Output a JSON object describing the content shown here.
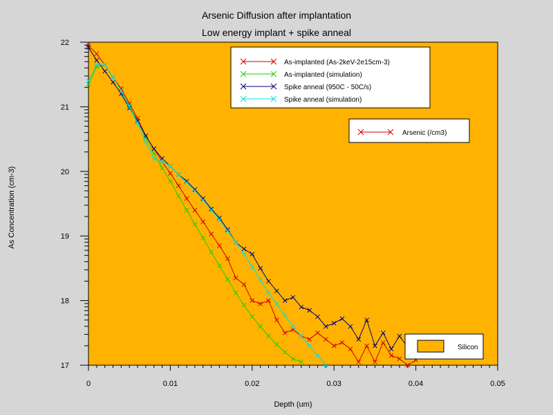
{
  "chart_data": {
    "type": "line",
    "title": "Arsenic Diffusion after implantation",
    "subtitle": "Low energy implant + spike anneal",
    "xlabel": "Depth (um)",
    "ylabel": "As Concentration (cm-3)",
    "xlim": [
      0,
      0.05
    ],
    "ylim": [
      17,
      22
    ],
    "xticks": [
      0,
      0.01,
      0.02,
      0.03,
      0.04,
      0.05
    ],
    "xtick_labels": [
      "0",
      "0.01",
      "0.02",
      "0.03",
      "0.04",
      "0.05"
    ],
    "yticks": [
      17,
      18,
      19,
      20,
      21,
      22
    ],
    "ytick_labels": [
      "17",
      "18",
      "19",
      "20",
      "21",
      "22"
    ],
    "grid": false,
    "background_color": "#ffb300",
    "legend_placement": "top-right",
    "series": [
      {
        "name": "As-implanted (As-2keV-2e15cm-3)",
        "color": "#cc0000",
        "x": [
          0,
          0.001,
          0.002,
          0.003,
          0.004,
          0.005,
          0.006,
          0.007,
          0.008,
          0.009,
          0.01,
          0.011,
          0.012,
          0.013,
          0.014,
          0.015,
          0.016,
          0.017,
          0.018,
          0.019,
          0.02,
          0.021,
          0.022,
          0.023,
          0.024,
          0.025,
          0.026,
          0.027,
          0.028,
          0.029,
          0.03,
          0.031,
          0.032,
          0.033,
          0.034,
          0.035,
          0.036,
          0.037,
          0.038,
          0.039,
          0.04
        ],
        "y": [
          21.95,
          21.82,
          21.65,
          21.45,
          21.28,
          21.05,
          20.82,
          20.55,
          20.35,
          20.15,
          19.97,
          19.78,
          19.58,
          19.4,
          19.22,
          19.03,
          18.85,
          18.65,
          18.35,
          18.25,
          18.0,
          17.95,
          18.0,
          17.7,
          17.5,
          17.55,
          17.45,
          17.4,
          17.5,
          17.4,
          17.3,
          17.35,
          17.25,
          17.05,
          17.3,
          17.05,
          17.35,
          17.15,
          17.1,
          17.0,
          17.08
        ]
      },
      {
        "name": "As-implanted (simulation)",
        "color": "#22cc00",
        "x": [
          0,
          0.001,
          0.002,
          0.003,
          0.004,
          0.005,
          0.006,
          0.007,
          0.008,
          0.009,
          0.01,
          0.011,
          0.012,
          0.013,
          0.014,
          0.015,
          0.016,
          0.017,
          0.018,
          0.019,
          0.02,
          0.021,
          0.022,
          0.023,
          0.024,
          0.025,
          0.026
        ],
        "y": [
          21.35,
          21.62,
          21.65,
          21.45,
          21.25,
          21.02,
          20.78,
          20.52,
          20.28,
          20.05,
          19.85,
          19.62,
          19.4,
          19.18,
          18.97,
          18.75,
          18.54,
          18.33,
          18.12,
          17.93,
          17.75,
          17.6,
          17.45,
          17.32,
          17.2,
          17.1,
          17.05
        ]
      },
      {
        "name": "Spike anneal (950C - 50C/s)",
        "color": "#000080",
        "x": [
          0,
          0.001,
          0.002,
          0.003,
          0.004,
          0.005,
          0.006,
          0.007,
          0.008,
          0.009,
          0.01,
          0.011,
          0.012,
          0.013,
          0.014,
          0.015,
          0.016,
          0.017,
          0.018,
          0.019,
          0.02,
          0.021,
          0.022,
          0.023,
          0.024,
          0.025,
          0.026,
          0.027,
          0.028,
          0.029,
          0.03,
          0.031,
          0.032,
          0.033,
          0.034,
          0.035,
          0.036,
          0.037,
          0.038,
          0.039,
          0.04
        ],
        "y": [
          21.92,
          21.72,
          21.55,
          21.38,
          21.2,
          20.98,
          20.78,
          20.55,
          20.35,
          20.2,
          20.08,
          19.95,
          19.85,
          19.72,
          19.58,
          19.42,
          19.28,
          19.1,
          18.9,
          18.8,
          18.72,
          18.5,
          18.3,
          18.15,
          18.0,
          18.05,
          17.9,
          17.85,
          17.75,
          17.6,
          17.65,
          17.72,
          17.6,
          17.4,
          17.7,
          17.3,
          17.5,
          17.25,
          17.45,
          17.28,
          17.2
        ]
      },
      {
        "name": "Spike anneal (simulation)",
        "color": "#00e0e0",
        "x": [
          0,
          0.001,
          0.002,
          0.003,
          0.004,
          0.005,
          0.006,
          0.007,
          0.008,
          0.009,
          0.01,
          0.011,
          0.012,
          0.013,
          0.014,
          0.015,
          0.016,
          0.017,
          0.018,
          0.019,
          0.02,
          0.021,
          0.022,
          0.023,
          0.024,
          0.025,
          0.026,
          0.027,
          0.028,
          0.029
        ],
        "y": [
          21.4,
          21.65,
          21.65,
          21.45,
          21.25,
          21.0,
          20.75,
          20.45,
          20.2,
          20.15,
          20.08,
          19.95,
          19.82,
          19.7,
          19.55,
          19.4,
          19.25,
          19.08,
          18.9,
          18.72,
          18.52,
          18.32,
          18.12,
          17.95,
          17.77,
          17.6,
          17.45,
          17.3,
          17.15,
          17.0
        ]
      }
    ],
    "second_legend": {
      "entries": [
        {
          "name": "Arsenic (/cm3)",
          "color": "#cc0000"
        }
      ]
    },
    "region_legend": {
      "entries": [
        {
          "name": "Silicon",
          "color": "#ffb300"
        }
      ]
    }
  }
}
